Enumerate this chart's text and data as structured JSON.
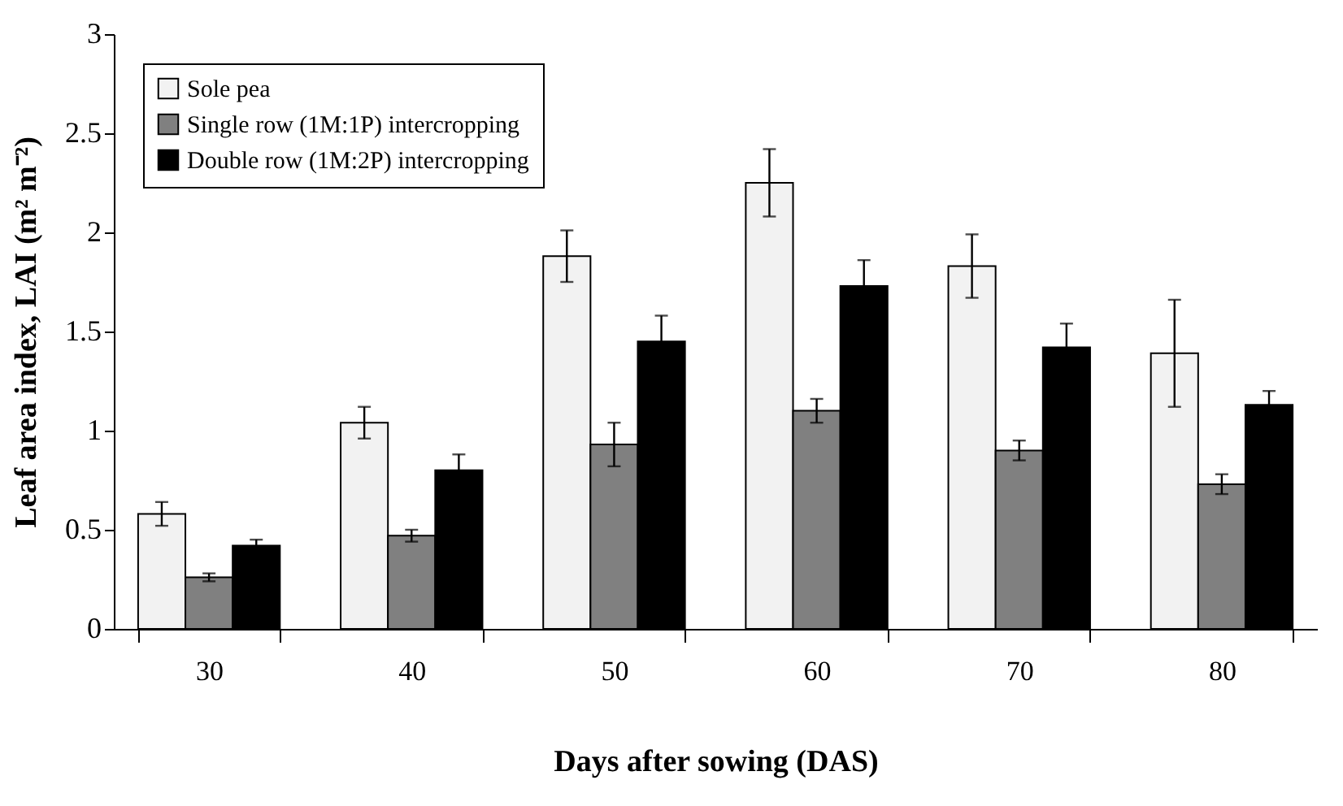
{
  "chart_data": {
    "type": "bar",
    "xlabel": "Days after sowing (DAS)",
    "ylabel": "Leaf area index, LAI (m² m⁻²)",
    "categories": [
      "30",
      "40",
      "50",
      "60",
      "70",
      "80"
    ],
    "series": [
      {
        "name": "Sole pea",
        "color": "#f2f2f2",
        "values": [
          0.58,
          1.04,
          1.88,
          2.25,
          1.83,
          1.39
        ],
        "errors": [
          0.06,
          0.08,
          0.13,
          0.17,
          0.16,
          0.27
        ]
      },
      {
        "name": "Single row (1M:1P) intercropping",
        "color": "#808080",
        "values": [
          0.26,
          0.47,
          0.93,
          1.1,
          0.9,
          0.73
        ],
        "errors": [
          0.02,
          0.03,
          0.11,
          0.06,
          0.05,
          0.05
        ]
      },
      {
        "name": "Double row (1M:2P) intercropping",
        "color": "#000000",
        "values": [
          0.42,
          0.8,
          1.45,
          1.73,
          1.42,
          1.13
        ],
        "errors": [
          0.03,
          0.08,
          0.13,
          0.13,
          0.12,
          0.07
        ]
      }
    ],
    "ylim": [
      0,
      3
    ],
    "yticks": [
      0,
      0.5,
      1,
      1.5,
      2,
      2.5,
      3
    ],
    "grid": false,
    "legend": "top left"
  }
}
